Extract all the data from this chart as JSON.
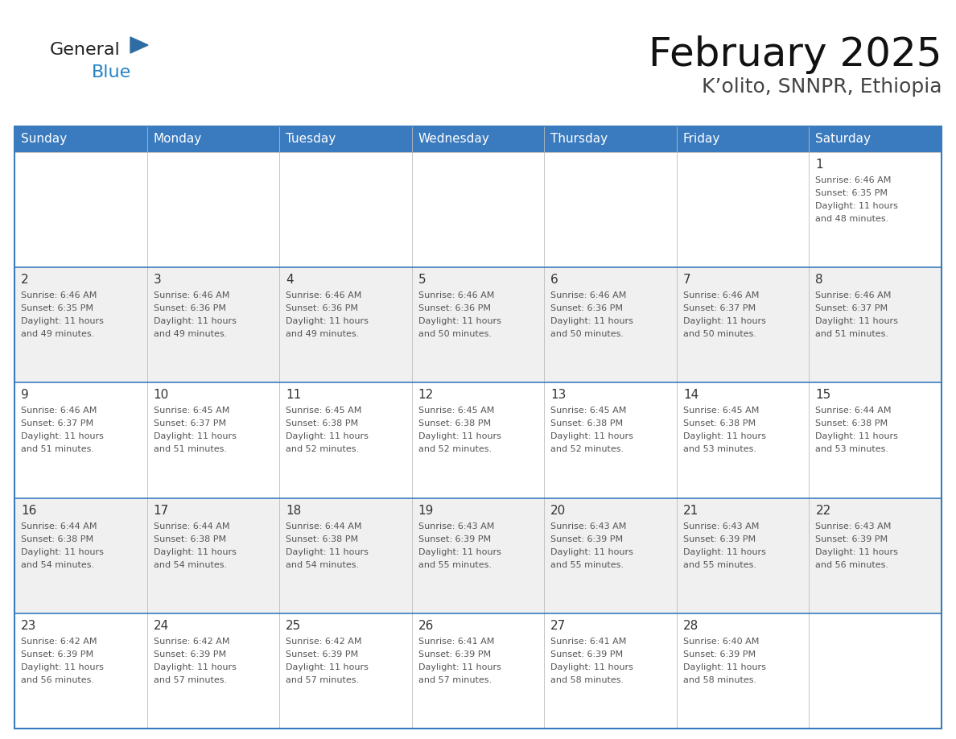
{
  "title": "February 2025",
  "subtitle": "K’olito, SNNPR, Ethiopia",
  "header_color": "#3a7bbf",
  "header_text_color": "#ffffff",
  "border_color": "#3a7bbf",
  "row_line_color": "#3a7bbf",
  "day_names": [
    "Sunday",
    "Monday",
    "Tuesday",
    "Wednesday",
    "Thursday",
    "Friday",
    "Saturday"
  ],
  "cell_bg_white": "#ffffff",
  "cell_bg_gray": "#f0f0f0",
  "days": [
    {
      "day": 1,
      "col": 6,
      "row": 0,
      "sunrise": "6:46 AM",
      "sunset": "6:35 PM",
      "daylight": "11 hours and 48 minutes."
    },
    {
      "day": 2,
      "col": 0,
      "row": 1,
      "sunrise": "6:46 AM",
      "sunset": "6:35 PM",
      "daylight": "11 hours and 49 minutes."
    },
    {
      "day": 3,
      "col": 1,
      "row": 1,
      "sunrise": "6:46 AM",
      "sunset": "6:36 PM",
      "daylight": "11 hours and 49 minutes."
    },
    {
      "day": 4,
      "col": 2,
      "row": 1,
      "sunrise": "6:46 AM",
      "sunset": "6:36 PM",
      "daylight": "11 hours and 49 minutes."
    },
    {
      "day": 5,
      "col": 3,
      "row": 1,
      "sunrise": "6:46 AM",
      "sunset": "6:36 PM",
      "daylight": "11 hours and 50 minutes."
    },
    {
      "day": 6,
      "col": 4,
      "row": 1,
      "sunrise": "6:46 AM",
      "sunset": "6:36 PM",
      "daylight": "11 hours and 50 minutes."
    },
    {
      "day": 7,
      "col": 5,
      "row": 1,
      "sunrise": "6:46 AM",
      "sunset": "6:37 PM",
      "daylight": "11 hours and 50 minutes."
    },
    {
      "day": 8,
      "col": 6,
      "row": 1,
      "sunrise": "6:46 AM",
      "sunset": "6:37 PM",
      "daylight": "11 hours and 51 minutes."
    },
    {
      "day": 9,
      "col": 0,
      "row": 2,
      "sunrise": "6:46 AM",
      "sunset": "6:37 PM",
      "daylight": "11 hours and 51 minutes."
    },
    {
      "day": 10,
      "col": 1,
      "row": 2,
      "sunrise": "6:45 AM",
      "sunset": "6:37 PM",
      "daylight": "11 hours and 51 minutes."
    },
    {
      "day": 11,
      "col": 2,
      "row": 2,
      "sunrise": "6:45 AM",
      "sunset": "6:38 PM",
      "daylight": "11 hours and 52 minutes."
    },
    {
      "day": 12,
      "col": 3,
      "row": 2,
      "sunrise": "6:45 AM",
      "sunset": "6:38 PM",
      "daylight": "11 hours and 52 minutes."
    },
    {
      "day": 13,
      "col": 4,
      "row": 2,
      "sunrise": "6:45 AM",
      "sunset": "6:38 PM",
      "daylight": "11 hours and 52 minutes."
    },
    {
      "day": 14,
      "col": 5,
      "row": 2,
      "sunrise": "6:45 AM",
      "sunset": "6:38 PM",
      "daylight": "11 hours and 53 minutes."
    },
    {
      "day": 15,
      "col": 6,
      "row": 2,
      "sunrise": "6:44 AM",
      "sunset": "6:38 PM",
      "daylight": "11 hours and 53 minutes."
    },
    {
      "day": 16,
      "col": 0,
      "row": 3,
      "sunrise": "6:44 AM",
      "sunset": "6:38 PM",
      "daylight": "11 hours and 54 minutes."
    },
    {
      "day": 17,
      "col": 1,
      "row": 3,
      "sunrise": "6:44 AM",
      "sunset": "6:38 PM",
      "daylight": "11 hours and 54 minutes."
    },
    {
      "day": 18,
      "col": 2,
      "row": 3,
      "sunrise": "6:44 AM",
      "sunset": "6:38 PM",
      "daylight": "11 hours and 54 minutes."
    },
    {
      "day": 19,
      "col": 3,
      "row": 3,
      "sunrise": "6:43 AM",
      "sunset": "6:39 PM",
      "daylight": "11 hours and 55 minutes."
    },
    {
      "day": 20,
      "col": 4,
      "row": 3,
      "sunrise": "6:43 AM",
      "sunset": "6:39 PM",
      "daylight": "11 hours and 55 minutes."
    },
    {
      "day": 21,
      "col": 5,
      "row": 3,
      "sunrise": "6:43 AM",
      "sunset": "6:39 PM",
      "daylight": "11 hours and 55 minutes."
    },
    {
      "day": 22,
      "col": 6,
      "row": 3,
      "sunrise": "6:43 AM",
      "sunset": "6:39 PM",
      "daylight": "11 hours and 56 minutes."
    },
    {
      "day": 23,
      "col": 0,
      "row": 4,
      "sunrise": "6:42 AM",
      "sunset": "6:39 PM",
      "daylight": "11 hours and 56 minutes."
    },
    {
      "day": 24,
      "col": 1,
      "row": 4,
      "sunrise": "6:42 AM",
      "sunset": "6:39 PM",
      "daylight": "11 hours and 57 minutes."
    },
    {
      "day": 25,
      "col": 2,
      "row": 4,
      "sunrise": "6:42 AM",
      "sunset": "6:39 PM",
      "daylight": "11 hours and 57 minutes."
    },
    {
      "day": 26,
      "col": 3,
      "row": 4,
      "sunrise": "6:41 AM",
      "sunset": "6:39 PM",
      "daylight": "11 hours and 57 minutes."
    },
    {
      "day": 27,
      "col": 4,
      "row": 4,
      "sunrise": "6:41 AM",
      "sunset": "6:39 PM",
      "daylight": "11 hours and 58 minutes."
    },
    {
      "day": 28,
      "col": 5,
      "row": 4,
      "sunrise": "6:40 AM",
      "sunset": "6:39 PM",
      "daylight": "11 hours and 58 minutes."
    }
  ],
  "num_rows": 5,
  "num_cols": 7,
  "logo_general_color": "#222222",
  "logo_blue_color": "#2383c4",
  "logo_triangle_color": "#2e6da4"
}
